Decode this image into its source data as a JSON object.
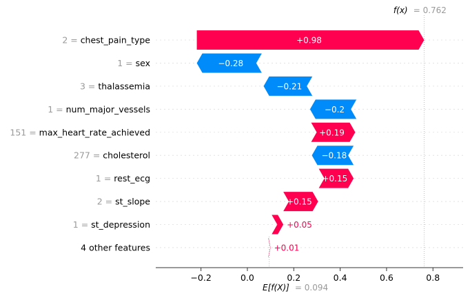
{
  "chart_data": {
    "type": "waterfall",
    "base_value": 0.094,
    "final_value": 0.762,
    "base_label": "E[f(X)]",
    "final_label": "f(x)",
    "base_value_text": "= 0.094",
    "final_value_text": "= 0.762",
    "xlim": [
      -0.395,
      0.93
    ],
    "xticks": [
      -0.2,
      0.0,
      0.2,
      0.4,
      0.6,
      0.8
    ],
    "xtick_labels": [
      "−0.2",
      "0.0",
      "0.2",
      "0.4",
      "0.6",
      "0.8"
    ],
    "colors": {
      "positive": "#ff0051",
      "negative": "#008bfb"
    },
    "features": [
      {
        "value": "2 =",
        "name": "chest_pain_type",
        "shap": 0.98,
        "label": "+0.98",
        "start": 0.762
      },
      {
        "value": "1 =",
        "name": "sex",
        "shap": -0.28,
        "label": "−0.28",
        "start": -0.218
      },
      {
        "value": "3 =",
        "name": "thalassemia",
        "shap": -0.21,
        "label": "−0.21",
        "start": 0.07
      },
      {
        "value": "1 =",
        "name": "num_major_vessels",
        "shap": -0.2,
        "label": "−0.2",
        "start": 0.27
      },
      {
        "value": "151 =",
        "name": "max_heart_rate_achieved",
        "shap": 0.19,
        "label": "+0.19",
        "start": 0.465
      },
      {
        "value": "277 =",
        "name": "cholesterol",
        "shap": -0.18,
        "label": "−0.18",
        "start": 0.278
      },
      {
        "value": "1 =",
        "name": "rest_ecg",
        "shap": 0.15,
        "label": "+0.15",
        "start": 0.458
      },
      {
        "value": "2 =",
        "name": "st_slope",
        "shap": 0.15,
        "label": "+0.15",
        "start": 0.305
      },
      {
        "value": "1 =",
        "name": "st_depression",
        "shap": 0.05,
        "label": "+0.05",
        "start": 0.155
      },
      {
        "value": "",
        "name": "4 other features",
        "shap": 0.01,
        "label": "+0.01",
        "start": 0.1
      }
    ]
  }
}
